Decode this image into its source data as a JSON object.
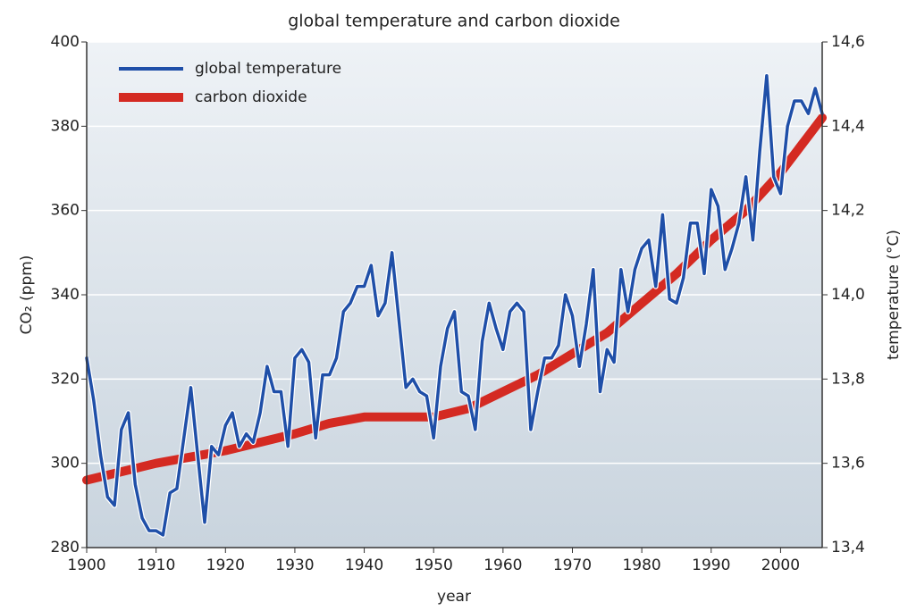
{
  "chart_data": {
    "type": "line",
    "title": "global temperature and carbon dioxide",
    "xlabel": "year",
    "ylabel": "CO₂ (ppm)",
    "y2label": "temperature (°C)",
    "xlim": [
      1900,
      2006
    ],
    "xticks": [
      1900,
      1910,
      1920,
      1930,
      1940,
      1950,
      1960,
      1970,
      1980,
      1990,
      2000
    ],
    "ylim": [
      280,
      400
    ],
    "yticks": [
      280,
      300,
      320,
      340,
      360,
      380,
      400
    ],
    "y2lim": [
      13.4,
      14.6
    ],
    "y2ticks": [
      {
        "value": 13.4,
        "label": "13,4"
      },
      {
        "value": 13.6,
        "label": "13,6"
      },
      {
        "value": 13.8,
        "label": "13,8"
      },
      {
        "value": 14.0,
        "label": "14,0"
      },
      {
        "value": 14.2,
        "label": "14,2"
      },
      {
        "value": 14.4,
        "label": "14,4"
      },
      {
        "value": 14.6,
        "label": "14,6"
      }
    ],
    "grid": true,
    "legend": "upper left",
    "series": [
      {
        "name": "global temperature",
        "color": "#1f4fa8",
        "axis": "y2",
        "x": [
          1900,
          1901,
          1902,
          1903,
          1904,
          1905,
          1906,
          1907,
          1908,
          1909,
          1910,
          1911,
          1912,
          1913,
          1914,
          1915,
          1916,
          1917,
          1918,
          1919,
          1920,
          1921,
          1922,
          1923,
          1924,
          1925,
          1926,
          1927,
          1928,
          1929,
          1930,
          1931,
          1932,
          1933,
          1934,
          1935,
          1936,
          1937,
          1938,
          1939,
          1940,
          1941,
          1942,
          1943,
          1944,
          1945,
          1946,
          1947,
          1948,
          1949,
          1950,
          1951,
          1952,
          1953,
          1954,
          1955,
          1956,
          1957,
          1958,
          1959,
          1960,
          1961,
          1962,
          1963,
          1964,
          1965,
          1966,
          1967,
          1968,
          1969,
          1970,
          1971,
          1972,
          1973,
          1974,
          1975,
          1976,
          1977,
          1978,
          1979,
          1980,
          1981,
          1982,
          1983,
          1984,
          1985,
          1986,
          1987,
          1988,
          1989,
          1990,
          1991,
          1992,
          1993,
          1994,
          1995,
          1996,
          1997,
          1998,
          1999,
          2000,
          2001,
          2002,
          2003,
          2004,
          2005,
          2006
        ],
        "values": [
          13.85,
          13.75,
          13.62,
          13.52,
          13.5,
          13.68,
          13.72,
          13.55,
          13.47,
          13.44,
          13.44,
          13.43,
          13.53,
          13.54,
          13.66,
          13.78,
          13.62,
          13.46,
          13.64,
          13.62,
          13.69,
          13.72,
          13.64,
          13.67,
          13.65,
          13.72,
          13.83,
          13.77,
          13.77,
          13.64,
          13.85,
          13.87,
          13.84,
          13.66,
          13.81,
          13.81,
          13.85,
          13.96,
          13.98,
          14.02,
          14.02,
          14.07,
          13.95,
          13.98,
          14.1,
          13.94,
          13.78,
          13.8,
          13.77,
          13.76,
          13.66,
          13.83,
          13.92,
          13.96,
          13.77,
          13.76,
          13.68,
          13.89,
          13.98,
          13.92,
          13.87,
          13.96,
          13.98,
          13.96,
          13.68,
          13.77,
          13.85,
          13.85,
          13.88,
          14.0,
          13.95,
          13.83,
          13.93,
          14.06,
          13.77,
          13.87,
          13.84,
          14.06,
          13.96,
          14.06,
          14.11,
          14.13,
          14.02,
          14.19,
          13.99,
          13.98,
          14.04,
          14.17,
          14.17,
          14.05,
          14.25,
          14.21,
          14.06,
          14.11,
          14.17,
          14.28,
          14.13,
          14.34,
          14.52,
          14.28,
          14.24,
          14.4,
          14.46,
          14.46,
          14.43,
          14.49,
          14.43
        ]
      },
      {
        "name": "carbon dioxide",
        "color": "#d42a22",
        "x": [
          1900,
          1905,
          1910,
          1915,
          1920,
          1925,
          1930,
          1935,
          1940,
          1945,
          1950,
          1955,
          1960,
          1965,
          1970,
          1975,
          1980,
          1985,
          1990,
          1995,
          2000,
          2006
        ],
        "values": [
          296,
          298,
          300,
          301.5,
          303,
          305,
          307,
          309.5,
          311,
          311,
          311,
          313,
          317,
          321,
          326,
          331,
          338,
          345,
          353,
          360,
          369,
          382
        ]
      }
    ]
  }
}
